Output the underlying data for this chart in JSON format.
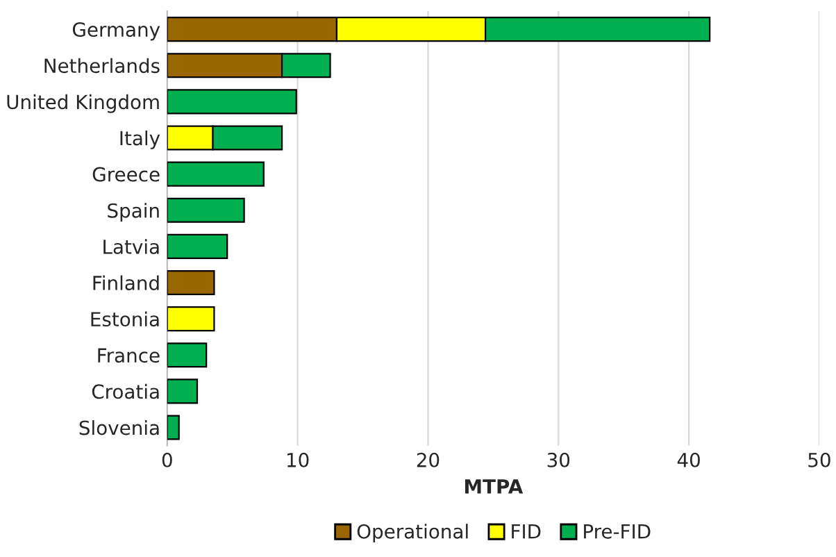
{
  "chart_data": {
    "type": "bar",
    "orientation": "horizontal",
    "stacked": true,
    "xlabel": "MTPA",
    "categories": [
      "Germany",
      "Netherlands",
      "United Kingdom",
      "Italy",
      "Greece",
      "Spain",
      "Latvia",
      "Finland",
      "Estonia",
      "France",
      "Croatia",
      "Slovenia"
    ],
    "series": [
      {
        "name": "Operational",
        "color": "#996600",
        "values": [
          13.0,
          8.8,
          null,
          null,
          null,
          null,
          null,
          3.6,
          null,
          null,
          null,
          null
        ]
      },
      {
        "name": "FID",
        "color": "#ffff00",
        "values": [
          11.4,
          null,
          null,
          3.5,
          null,
          null,
          null,
          null,
          3.6,
          null,
          null,
          null
        ]
      },
      {
        "name": "Pre-FID",
        "color": "#00b050",
        "values": [
          17.2,
          3.7,
          9.9,
          5.3,
          7.4,
          5.9,
          4.6,
          null,
          null,
          3.0,
          2.3,
          0.9
        ]
      }
    ],
    "xlim": [
      0,
      50
    ],
    "xticks": [
      0,
      10,
      20,
      30,
      40,
      50
    ],
    "grid": "x",
    "legend": "bottom"
  }
}
